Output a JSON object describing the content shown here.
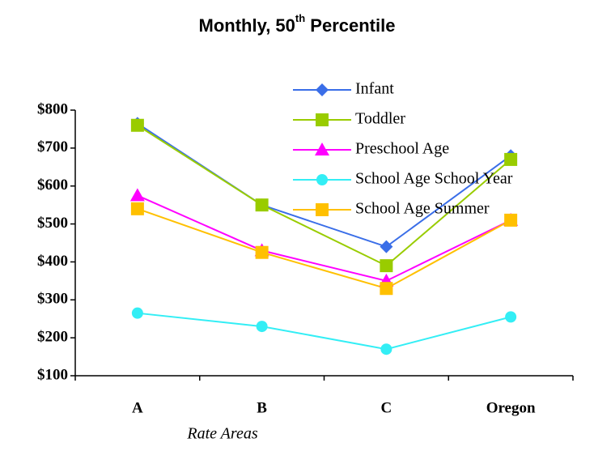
{
  "chart_data": {
    "type": "line",
    "title": [
      "Monthly, 50",
      "th",
      " Percentile"
    ],
    "x_label": "Rate Areas",
    "categories": [
      "A",
      "B",
      "C",
      "Oregon"
    ],
    "series": [
      {
        "name": "Infant",
        "color": "#3a6ee8",
        "marker": "diamond",
        "values": [
          765,
          550,
          440,
          680
        ]
      },
      {
        "name": "Toddler",
        "color": "#99cc00",
        "marker": "square",
        "values": [
          760,
          550,
          390,
          670
        ]
      },
      {
        "name": "Preschool Age",
        "color": "#ff00ff",
        "marker": "triangle",
        "values": [
          575,
          430,
          350,
          510
        ]
      },
      {
        "name": "School Age School Year",
        "color": "#33eef5",
        "marker": "circle",
        "values": [
          265,
          230,
          170,
          255
        ]
      },
      {
        "name": "School Age Summer",
        "color": "#ffc000",
        "marker": "square",
        "values": [
          540,
          425,
          330,
          510
        ]
      }
    ],
    "ylim": [
      100,
      800
    ],
    "yticks": [
      {
        "value": 100,
        "label": "$100"
      },
      {
        "value": 200,
        "label": "$200"
      },
      {
        "value": 300,
        "label": "$300"
      },
      {
        "value": 400,
        "label": "$400"
      },
      {
        "value": 500,
        "label": "$500"
      },
      {
        "value": 600,
        "label": "$600"
      },
      {
        "value": 700,
        "label": "$700"
      },
      {
        "value": 800,
        "label": "$800"
      }
    ],
    "grid": false,
    "legend": "top-right"
  }
}
